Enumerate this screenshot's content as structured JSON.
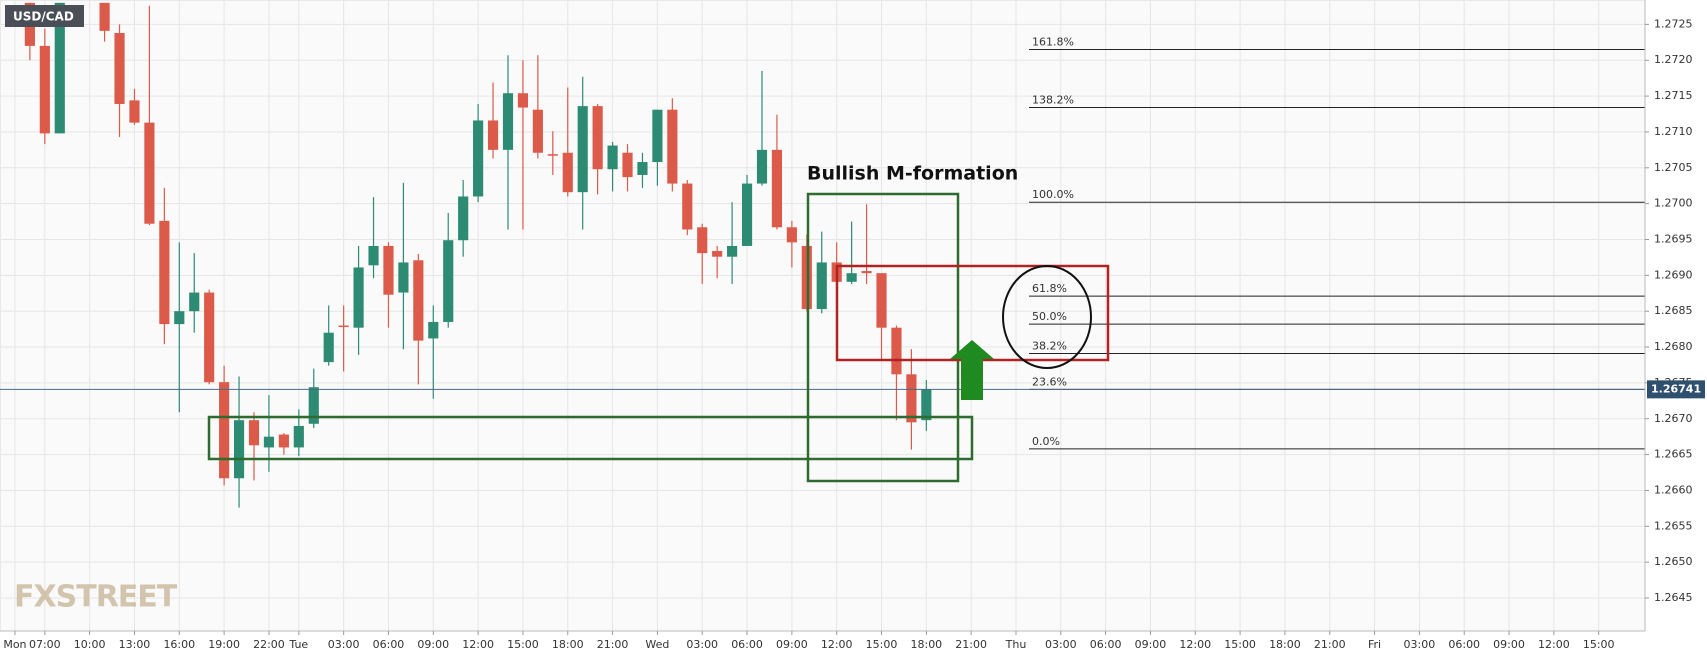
{
  "chart_data": {
    "type": "candlestick",
    "title": "USD/CAD",
    "watermark": "FXSTREET",
    "annotation": "Bullish M-formation",
    "up_color": "#2e8b73",
    "down_color": "#db5a4a",
    "grid": true,
    "x": [
      6,
      7,
      8,
      11,
      12,
      13,
      14,
      15,
      16,
      17,
      18,
      19,
      20,
      21,
      22,
      23,
      24,
      25,
      26,
      27,
      28,
      29,
      30,
      31,
      32,
      33,
      34,
      35,
      36,
      37,
      38,
      39,
      40,
      41,
      42,
      43,
      44,
      45,
      46,
      47,
      48,
      49,
      50,
      51,
      52,
      53,
      54,
      55,
      56,
      57,
      58,
      59,
      60,
      61,
      62,
      63,
      64,
      65,
      66
    ],
    "open": [
      1.2728,
      1.2722,
      1.27098,
      1.2728,
      1.27238,
      1.27144,
      1.27113,
      1.26976,
      1.26832,
      1.2685,
      1.26876,
      1.26751,
      1.26617,
      1.26698,
      1.2666,
      1.26678,
      1.2666,
      1.26693,
      1.26779,
      1.2683,
      1.26827,
      1.26914,
      1.26941,
      1.26876,
      1.26921,
      1.26812,
      1.26835,
      1.26949,
      1.2701,
      1.27116,
      1.27075,
      1.27154,
      1.27131,
      1.27069,
      1.27071,
      1.27016,
      1.27136,
      1.27048,
      1.27071,
      1.2704,
      1.27058,
      1.27131,
      1.27028,
      1.26967,
      1.26934,
      1.26926,
      1.26941,
      1.27028,
      1.27075,
      1.26967,
      1.26941,
      1.26853,
      1.26918,
      1.26891,
      1.26906,
      1.26903,
      1.26827,
      1.26762,
      1.26698
    ],
    "high": [
      1.2728,
      1.27244,
      1.2728,
      1.2728,
      1.2725,
      1.2716,
      1.27276,
      1.27022,
      1.26946,
      1.26931,
      1.2688,
      1.26774,
      1.26759,
      1.26709,
      1.26733,
      1.2668,
      1.26713,
      1.2677,
      1.26858,
      1.26858,
      1.26941,
      1.27009,
      1.26946,
      1.27029,
      1.2693,
      1.26858,
      1.26987,
      1.27033,
      1.27139,
      1.27169,
      1.27207,
      1.272,
      1.27207,
      1.27101,
      1.27162,
      1.27177,
      1.27139,
      1.27086,
      1.27083,
      1.27071,
      1.27131,
      1.27147,
      1.27033,
      1.26972,
      1.26941,
      1.27002,
      1.2704,
      1.27185,
      1.27124,
      1.26976,
      1.26957,
      1.26961,
      1.26946,
      1.26975,
      1.26999,
      1.26903,
      1.2683,
      1.26797,
      1.26754
    ],
    "low": [
      1.272,
      1.27083,
      1.27098,
      1.27226,
      1.27093,
      1.2711,
      1.2697,
      1.26804,
      1.26709,
      1.2682,
      1.26748,
      1.26607,
      1.26576,
      1.26614,
      1.26626,
      1.2665,
      1.26648,
      1.26687,
      1.26774,
      1.26766,
      1.26789,
      1.26896,
      1.26827,
      1.26797,
      1.26748,
      1.26728,
      1.26827,
      1.26926,
      1.27002,
      1.27063,
      1.26964,
      1.26964,
      1.27063,
      1.2704,
      1.2701,
      1.26964,
      1.27013,
      1.27017,
      1.27017,
      1.27022,
      1.27025,
      1.27017,
      1.26956,
      1.26888,
      1.26896,
      1.26888,
      1.26941,
      1.27025,
      1.26964,
      1.26911,
      1.2685,
      1.26847,
      1.26888,
      1.26888,
      1.26888,
      1.26781,
      1.26698,
      1.26657,
      1.26683
    ],
    "close": [
      1.2722,
      1.27098,
      1.2728,
      1.27241,
      1.27139,
      1.27113,
      1.26972,
      1.26832,
      1.2685,
      1.26876,
      1.26751,
      1.26617,
      1.26698,
      1.26663,
      1.26675,
      1.2666,
      1.2669,
      1.26744,
      1.2682,
      1.26828,
      1.26911,
      1.26941,
      1.26873,
      1.26918,
      1.26809,
      1.26835,
      1.26949,
      1.2701,
      1.27116,
      1.27075,
      1.27154,
      1.27134,
      1.27071,
      1.27067,
      1.27016,
      1.27136,
      1.27048,
      1.27081,
      1.27037,
      1.27058,
      1.27131,
      1.27028,
      1.26964,
      1.26931,
      1.26926,
      1.26941,
      1.27028,
      1.27075,
      1.26967,
      1.26946,
      1.26853,
      1.26918,
      1.26891,
      1.26903,
      1.26903,
      1.26827,
      1.26762,
      1.26695,
      1.26741
    ],
    "last_price": 1.26741,
    "fib_levels": [
      {
        "label": "161.8%",
        "value": 1.27215
      },
      {
        "label": "138.2%",
        "value": 1.27134
      },
      {
        "label": "100.0%",
        "value": 1.27002
      },
      {
        "label": "61.8%",
        "value": 1.26871
      },
      {
        "label": "50.0%",
        "value": 1.26832
      },
      {
        "label": "38.2%",
        "value": 1.26791
      },
      {
        "label": "23.6%",
        "value": 1.26741
      },
      {
        "label": "0.0%",
        "value": 1.26658
      }
    ],
    "xlim": [
      4,
      114.1
    ],
    "ylim": [
      1.26404,
      1.27284
    ],
    "yticks": [
      1.2645,
      {
        "value": 1.265,
        "label": "1.2650"
      },
      1.2655,
      {
        "value": 1.266,
        "label": "1.2660"
      },
      1.2665,
      {
        "value": 1.267,
        "label": "1.2670"
      },
      1.2675,
      {
        "value": 1.268,
        "label": "1.2680"
      },
      1.2685,
      {
        "value": 1.269,
        "label": "1.2690"
      },
      1.2695,
      {
        "value": 1.27,
        "label": "1.2700"
      },
      1.2705,
      {
        "value": 1.271,
        "label": "1.2710"
      },
      1.2715,
      {
        "value": 1.272,
        "label": "1.2720"
      },
      1.2725
    ],
    "xticks": [
      {
        "value": 5,
        "label": "Mon"
      },
      {
        "value": 7,
        "label": "07:00"
      },
      {
        "value": 10,
        "label": "10:00"
      },
      {
        "value": 13,
        "label": "13:00"
      },
      {
        "value": 16,
        "label": "16:00"
      },
      {
        "value": 19,
        "label": "19:00"
      },
      {
        "value": 22,
        "label": "22:00"
      },
      {
        "value": 24,
        "label": "Tue"
      },
      {
        "value": 27,
        "label": "03:00"
      },
      {
        "value": 30,
        "label": "06:00"
      },
      {
        "value": 33,
        "label": "09:00"
      },
      {
        "value": 36,
        "label": "12:00"
      },
      {
        "value": 39,
        "label": "15:00"
      },
      {
        "value": 42,
        "label": "18:00"
      },
      {
        "value": 45,
        "label": "21:00"
      },
      {
        "value": 48,
        "label": "Wed"
      },
      {
        "value": 51,
        "label": "03:00"
      },
      {
        "value": 54,
        "label": "06:00"
      },
      {
        "value": 57,
        "label": "09:00"
      },
      {
        "value": 60,
        "label": "12:00"
      },
      {
        "value": 63,
        "label": "15:00"
      },
      {
        "value": 66,
        "label": "18:00"
      },
      {
        "value": 69,
        "label": "21:00"
      },
      {
        "value": 72,
        "label": "Thu"
      },
      {
        "value": 75,
        "label": "03:00"
      },
      {
        "value": 78,
        "label": "06:00"
      },
      {
        "value": 81,
        "label": "09:00"
      },
      {
        "value": 84,
        "label": "12:00"
      },
      {
        "value": 87,
        "label": "15:00"
      },
      {
        "value": 90,
        "label": "18:00"
      },
      {
        "value": 93,
        "label": "21:00"
      },
      {
        "value": 96,
        "label": "Fri"
      },
      {
        "value": 99,
        "label": "03:00"
      },
      {
        "value": 102,
        "label": "06:00"
      },
      {
        "value": 105,
        "label": "09:00"
      },
      {
        "value": 108,
        "label": "12:00"
      },
      {
        "value": 111,
        "label": "15:00"
      }
    ]
  }
}
